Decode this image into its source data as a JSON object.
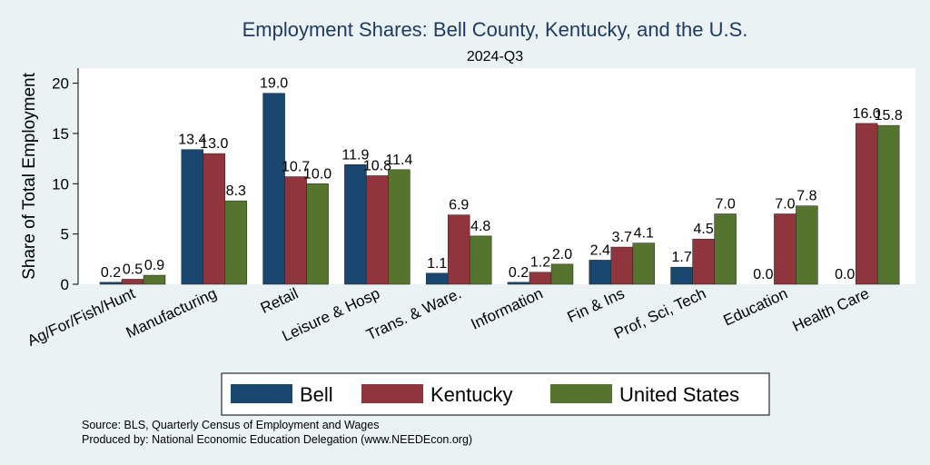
{
  "chart_data": {
    "type": "bar",
    "title": "Employment Shares: Bell County, Kentucky, and the U.S.",
    "subtitle": "2024-Q3",
    "xlabel": "",
    "ylabel": "Share of Total Employment",
    "ylim": [
      0,
      21.5
    ],
    "yticks": [
      0,
      5,
      10,
      15,
      20
    ],
    "grid": false,
    "categories": [
      "Ag/For/Fish/Hunt",
      "Manufacturing",
      "Retail",
      "Leisure & Hosp",
      "Trans. & Ware.",
      "Information",
      "Fin & Ins",
      "Prof, Sci, Tech",
      "Education",
      "Health Care"
    ],
    "series": [
      {
        "name": "Bell",
        "color": "#1a476f",
        "values": [
          0.2,
          13.4,
          19.0,
          11.9,
          1.1,
          0.2,
          2.4,
          1.7,
          0.0,
          0.0
        ],
        "labels": [
          "0.2",
          "13.4",
          "19.0",
          "11.9",
          "1.1",
          "0.2",
          "2.4",
          "1.7",
          "0.0",
          "0.0"
        ]
      },
      {
        "name": "Kentucky",
        "color": "#90353b",
        "values": [
          0.5,
          13.0,
          10.7,
          10.8,
          6.9,
          1.2,
          3.7,
          4.5,
          7.0,
          16.0
        ],
        "labels": [
          "0.5",
          "13.0",
          "10.7",
          "10.8",
          "6.9",
          "1.2",
          "3.7",
          "4.5",
          "7.0",
          "16.0"
        ]
      },
      {
        "name": "United States",
        "color": "#55752f",
        "values": [
          0.9,
          8.3,
          10.0,
          11.4,
          4.8,
          2.0,
          4.1,
          7.0,
          7.8,
          15.8
        ],
        "labels": [
          "0.9",
          "8.3",
          "10.0",
          "11.4",
          "4.8",
          "2.0",
          "4.1",
          "7.0",
          "7.8",
          "15.8"
        ]
      }
    ],
    "legend_position": "bottom"
  },
  "notes": {
    "source": "Source: BLS, Quarterly Census of Employment and Wages",
    "produced": "Produced by: National Economic Education Delegation (www.NEEDEcon.org)"
  },
  "colors": {
    "background": "#eaf2f3",
    "plot_background": "#ffffff",
    "title": "#1f3b63"
  }
}
